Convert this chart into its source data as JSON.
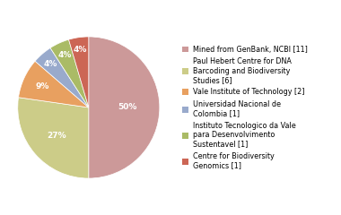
{
  "labels": [
    "Mined from GenBank, NCBI [11]",
    "Paul Hebert Centre for DNA\nBarcoding and Biodiversity\nStudies [6]",
    "Vale Institute of Technology [2]",
    "Universidad Nacional de\nColombia [1]",
    "Instituto Tecnologico da Vale\npara Desenvolvimento\nSustentavel [1]",
    "Centre for Biodiversity\nGenomics [1]"
  ],
  "values": [
    11,
    6,
    2,
    1,
    1,
    1
  ],
  "colors": [
    "#cc9999",
    "#cccc88",
    "#e8a060",
    "#99aacc",
    "#aabb66",
    "#cc6655"
  ],
  "pct_labels": [
    "50%",
    "27%",
    "9%",
    "4%",
    "4%",
    "4%"
  ],
  "pct_radii": [
    0.55,
    0.6,
    0.72,
    0.82,
    0.82,
    0.82
  ],
  "figsize": [
    3.8,
    2.4
  ],
  "dpi": 100,
  "bg_color": "#ffffff"
}
